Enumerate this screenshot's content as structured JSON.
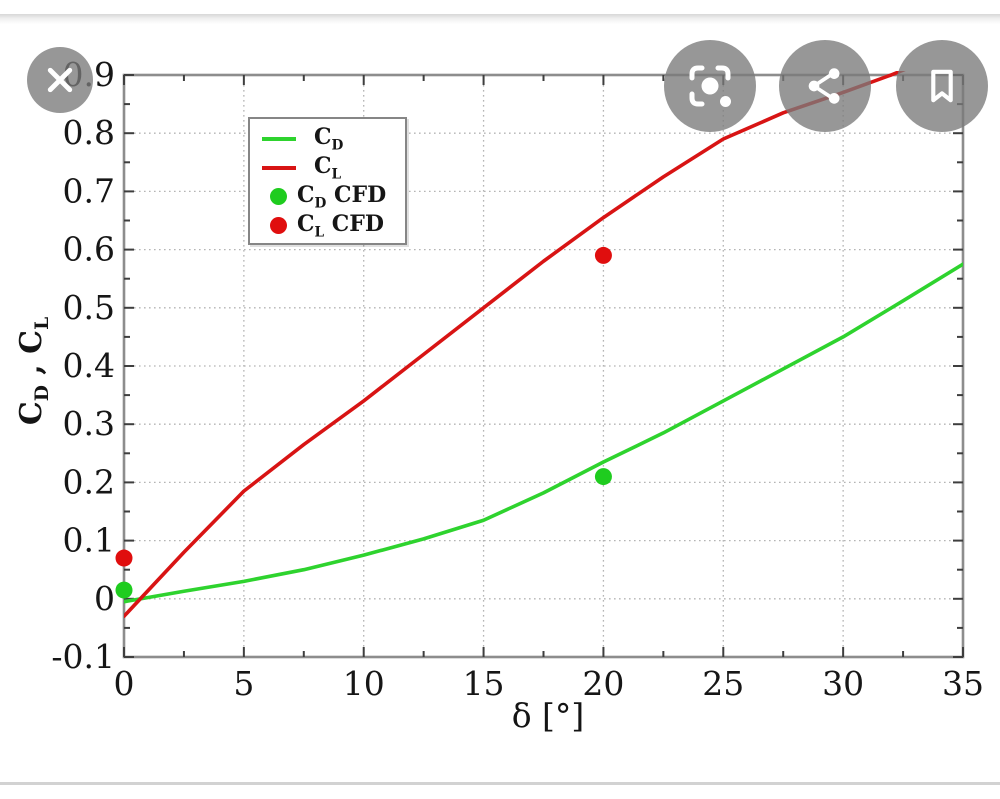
{
  "viewer": {
    "buttons": [
      {
        "name": "close"
      },
      {
        "name": "google-lens"
      },
      {
        "name": "share"
      },
      {
        "name": "bookmark"
      }
    ],
    "button_bg_color": "rgba(122,122,122,0.78)",
    "icon_color": "#ffffff"
  },
  "chart_data": {
    "type": "line",
    "title": "",
    "x_title": "δ [°]",
    "y_title": {
      "c1": "C",
      "s1": "D",
      "sep": " , ",
      "c2": "C",
      "s2": "L"
    },
    "xlim": [
      0,
      35
    ],
    "ylim": [
      -0.1,
      0.9
    ],
    "x_ticks": [
      {
        "v": 0,
        "label": "0"
      },
      {
        "v": 5,
        "label": "5"
      },
      {
        "v": 10,
        "label": "10"
      },
      {
        "v": 15,
        "label": "15"
      },
      {
        "v": 20,
        "label": "20"
      },
      {
        "v": 25,
        "label": "25"
      },
      {
        "v": 30,
        "label": "30"
      },
      {
        "v": 35,
        "label": "35"
      }
    ],
    "y_ticks": [
      {
        "v": -0.1,
        "label": "-0.1"
      },
      {
        "v": 0,
        "label": "0"
      },
      {
        "v": 0.1,
        "label": "0.1"
      },
      {
        "v": 0.2,
        "label": "0.2"
      },
      {
        "v": 0.3,
        "label": "0.3"
      },
      {
        "v": 0.4,
        "label": "0.4"
      },
      {
        "v": 0.5,
        "label": "0.5"
      },
      {
        "v": 0.6,
        "label": "0.6"
      },
      {
        "v": 0.7,
        "label": "0.7"
      },
      {
        "v": 0.8,
        "label": "0.8"
      },
      {
        "v": 0.9,
        "label": "0.9"
      }
    ],
    "x_minor_step": 2.5,
    "y_minor_step": 0.05,
    "grid": "dotted",
    "legend_position": "upper-left-inside",
    "series": [
      {
        "name": "C_D",
        "type": "line",
        "color": "#2ed32e",
        "points": [
          [
            0,
            -0.005
          ],
          [
            2.5,
            0.013
          ],
          [
            5,
            0.03
          ],
          [
            7.5,
            0.05
          ],
          [
            10,
            0.075
          ],
          [
            12.5,
            0.103
          ],
          [
            15,
            0.135
          ],
          [
            17.5,
            0.182
          ],
          [
            20,
            0.235
          ],
          [
            22.5,
            0.285
          ],
          [
            25,
            0.34
          ],
          [
            27.5,
            0.395
          ],
          [
            30,
            0.45
          ],
          [
            32.5,
            0.512
          ],
          [
            35,
            0.575
          ]
        ]
      },
      {
        "name": "C_L",
        "type": "line",
        "color": "#d81414",
        "points": [
          [
            0,
            -0.03
          ],
          [
            2.5,
            0.08
          ],
          [
            5,
            0.185
          ],
          [
            7.5,
            0.265
          ],
          [
            10,
            0.34
          ],
          [
            12.5,
            0.42
          ],
          [
            15,
            0.5
          ],
          [
            17.5,
            0.58
          ],
          [
            20,
            0.655
          ],
          [
            22.5,
            0.725
          ],
          [
            25,
            0.79
          ],
          [
            27.5,
            0.835
          ],
          [
            30,
            0.87
          ],
          [
            32,
            0.9
          ],
          [
            33.5,
            0.925
          ]
        ]
      },
      {
        "name": "C_D CFD",
        "type": "scatter",
        "color": "#1fcc1f",
        "points": [
          [
            0,
            0.015
          ],
          [
            20,
            0.21
          ]
        ]
      },
      {
        "name": "C_L CFD",
        "type": "scatter",
        "color": "#e00e0e",
        "points": [
          [
            0,
            0.07
          ],
          [
            20,
            0.59
          ]
        ]
      }
    ],
    "legend": [
      {
        "swatch": "line",
        "color": "#2ed32e",
        "label": {
          "main": "C",
          "sub": "D",
          "suffix": ""
        }
      },
      {
        "swatch": "line",
        "color": "#d81414",
        "label": {
          "main": "C",
          "sub": "L",
          "suffix": ""
        }
      },
      {
        "swatch": "dot",
        "color": "#1fcc1f",
        "label": {
          "main": "C",
          "sub": "D",
          "suffix": " CFD"
        }
      },
      {
        "swatch": "dot",
        "color": "#e00e0e",
        "label": {
          "main": "C",
          "sub": "L",
          "suffix": " CFD"
        }
      }
    ]
  }
}
